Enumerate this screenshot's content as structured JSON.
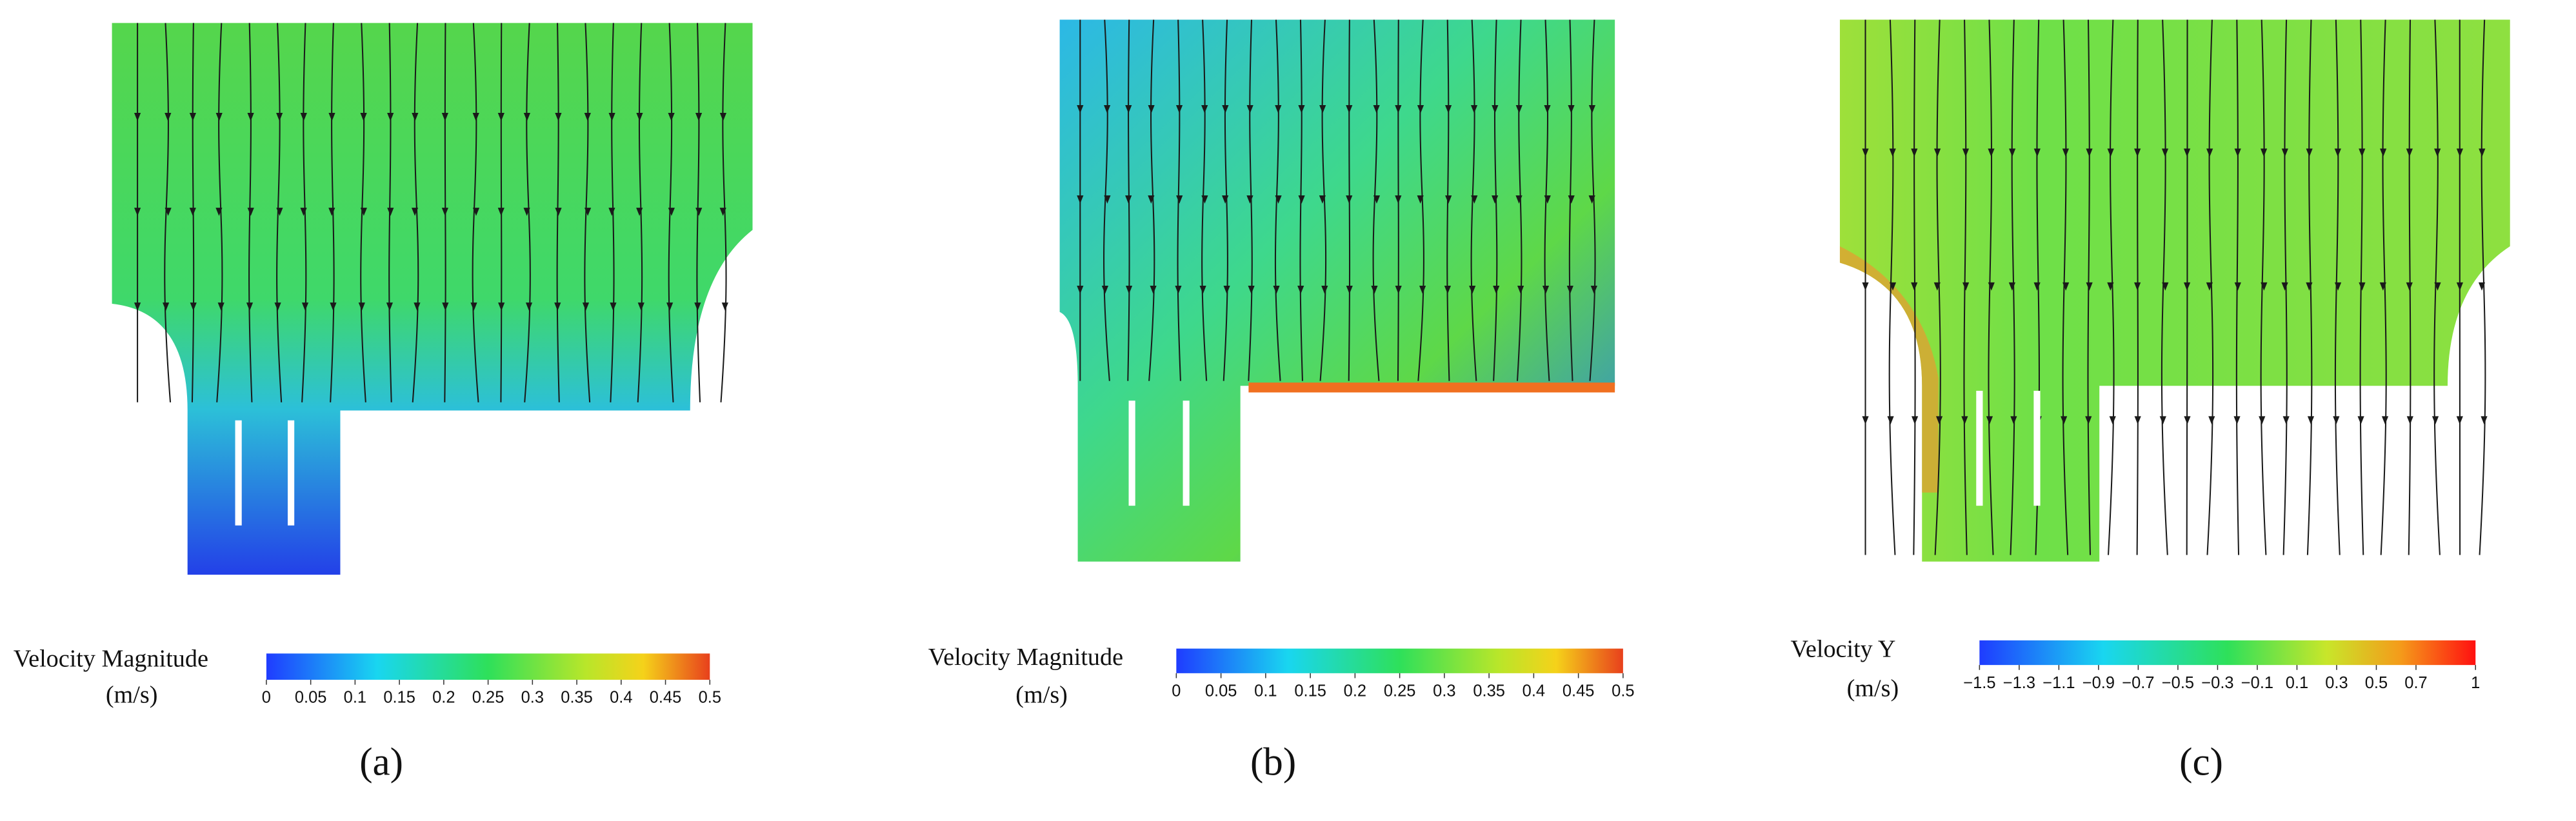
{
  "panels": [
    {
      "label": "(a)",
      "colorbar": {
        "title": "Velocity Magnitude",
        "unit": "(m/s)",
        "lim": [
          0,
          0.5
        ],
        "ticks": [
          0,
          0.05,
          0.1,
          0.15,
          0.2,
          0.25,
          0.3,
          0.35,
          0.4,
          0.45,
          0.5
        ]
      }
    },
    {
      "label": "(b)",
      "colorbar": {
        "title": "Velocity Magnitude",
        "unit": "(m/s)",
        "lim": [
          0,
          0.5
        ],
        "ticks": [
          0,
          0.05,
          0.1,
          0.15,
          0.2,
          0.25,
          0.3,
          0.35,
          0.4,
          0.45,
          0.5
        ]
      }
    },
    {
      "label": "(c)",
      "colorbar": {
        "title": "Velocity Y",
        "unit": "(m/s)",
        "lim": [
          -1.5,
          1
        ],
        "ticks": [
          {
            "value": -1.5,
            "label": "−1.5"
          },
          {
            "value": -1.3,
            "label": "−1.3"
          },
          {
            "value": -1.1,
            "label": "−1.1"
          },
          {
            "value": -0.9,
            "label": "−0.9"
          },
          {
            "value": -0.7,
            "label": "−0.7"
          },
          {
            "value": -0.5,
            "label": "−0.5"
          },
          {
            "value": -0.3,
            "label": "−0.3"
          },
          {
            "value": -0.1,
            "label": "−0.1"
          },
          0.1,
          0.3,
          0.5,
          0.7,
          1
        ]
      }
    }
  ]
}
